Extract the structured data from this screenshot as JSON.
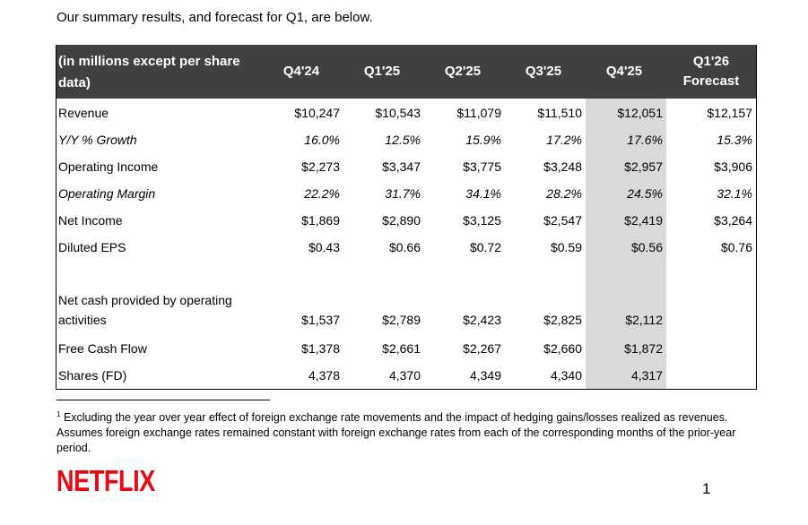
{
  "intro": "Our summary results, and forecast for Q1, are below.",
  "table": {
    "header_label": [
      "(in millions except per share",
      "data)"
    ],
    "columns": [
      {
        "line1": "Q4'24",
        "line2": ""
      },
      {
        "line1": "Q1'25",
        "line2": ""
      },
      {
        "line1": "Q2'25",
        "line2": ""
      },
      {
        "line1": "Q3'25",
        "line2": ""
      },
      {
        "line1": "Q4'25",
        "line2": ""
      },
      {
        "line1": "Q1'26",
        "line2": "Forecast"
      }
    ],
    "highlight_color": "#d9d9d9",
    "header_color": "#404040",
    "rows": [
      {
        "label": "Revenue",
        "italic": false,
        "values": [
          "$10,247",
          "$10,543",
          "$11,079",
          "$11,510",
          "$12,051",
          "$12,157"
        ]
      },
      {
        "label": "Y/Y % Growth",
        "italic": true,
        "values": [
          "16.0%",
          "12.5%",
          "15.9%",
          "17.2%",
          "17.6%",
          "15.3%"
        ]
      },
      {
        "label": "Operating Income",
        "italic": false,
        "values": [
          "$2,273",
          "$3,347",
          "$3,775",
          "$3,248",
          "$2,957",
          "$3,906"
        ]
      },
      {
        "label": "Operating Margin",
        "italic": true,
        "values": [
          "22.2%",
          "31.7%",
          "34.1%",
          "28.2%",
          "24.5%",
          "32.1%"
        ]
      },
      {
        "label": "Net Income",
        "italic": false,
        "values": [
          "$1,869",
          "$2,890",
          "$3,125",
          "$2,547",
          "$2,419",
          "$3,264"
        ]
      },
      {
        "label": "Diluted EPS",
        "italic": false,
        "values": [
          "$0.43",
          "$0.66",
          "$0.72",
          "$0.59",
          "$0.56",
          "$0.76"
        ]
      }
    ],
    "cash_rows": [
      {
        "label": [
          "Net cash provided by operating",
          "activities"
        ],
        "values": [
          "$1,537",
          "$2,789",
          "$2,423",
          "$2,825",
          "$2,112"
        ]
      },
      {
        "label": [
          "Free Cash Flow"
        ],
        "values": [
          "$1,378",
          "$2,661",
          "$2,267",
          "$2,660",
          "$1,872"
        ]
      },
      {
        "label": [
          "Shares (FD)"
        ],
        "values": [
          "4,378",
          "4,370",
          "4,349",
          "4,340",
          "4,317"
        ]
      }
    ]
  },
  "footnote": {
    "marker": "1",
    "text": "Excluding the year over year effect of foreign exchange rate movements and the impact of hedging gains/losses realized as revenues. Assumes foreign exchange rates remained constant with foreign exchange rates from each of the corresponding months of the prior-year period."
  },
  "logo_text": "NETFLIX",
  "logo_color": "#e50914",
  "page_number": "1"
}
